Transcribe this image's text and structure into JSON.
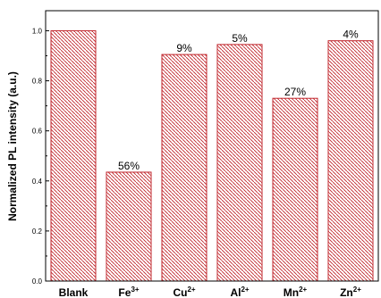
{
  "chart_data": {
    "type": "bar",
    "ylabel": "Normalized PL intensity (a.u.)",
    "xlabel": "",
    "ylim": [
      0,
      1.08
    ],
    "yticks": [
      "0.0",
      "0.2",
      "0.4",
      "0.6",
      "0.8",
      "1.0"
    ],
    "categories": [
      {
        "base": "Blank",
        "sup": ""
      },
      {
        "base": "Fe",
        "sup": "3+"
      },
      {
        "base": "Cu",
        "sup": "2+"
      },
      {
        "base": "Al",
        "sup": "2+"
      },
      {
        "base": "Mn",
        "sup": "2+"
      },
      {
        "base": "Zn",
        "sup": "2+"
      }
    ],
    "values": [
      1.0,
      0.435,
      0.905,
      0.945,
      0.73,
      0.96
    ],
    "labels": [
      "",
      "56%",
      "9%",
      "5%",
      "27%",
      "4%"
    ],
    "bar_color": "#c0242b",
    "grid": false
  }
}
